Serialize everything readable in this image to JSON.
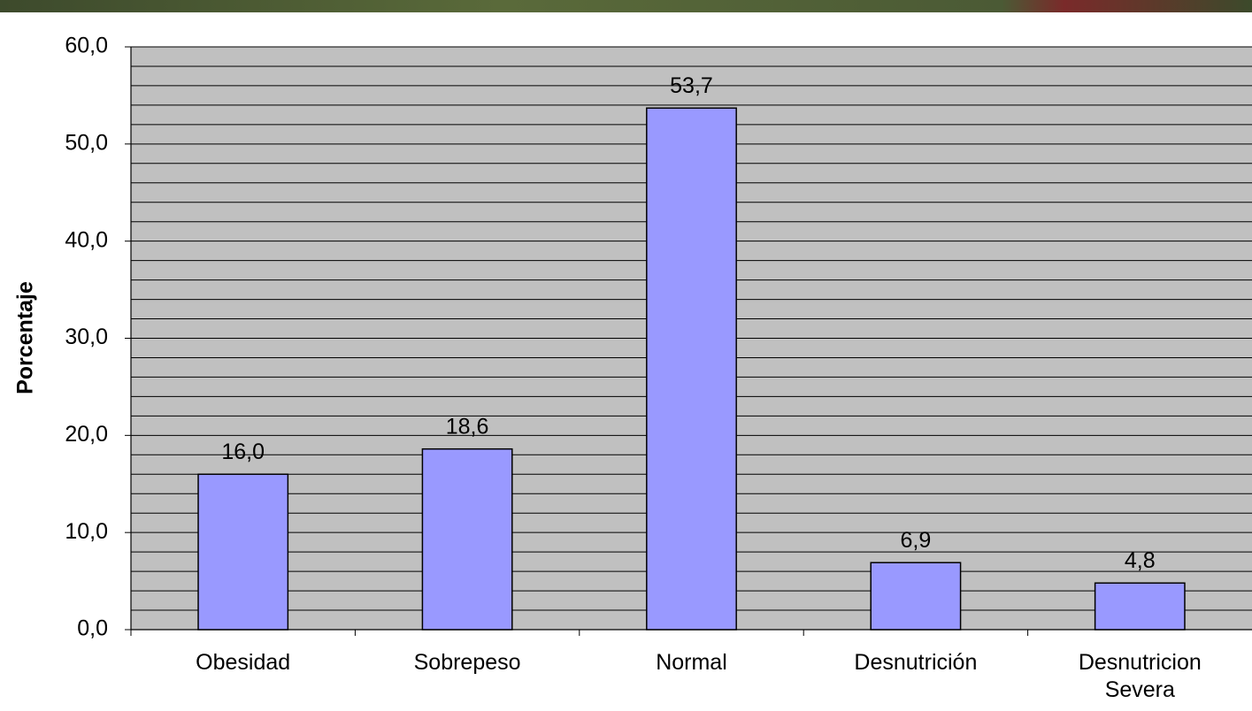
{
  "chart_data": {
    "type": "bar",
    "y_label": "Porcentaje",
    "categories": [
      "Obesidad",
      "Sobrepeso",
      "Normal",
      "Desnutrición",
      "Desnutricion Severa"
    ],
    "values": [
      16.0,
      18.6,
      53.7,
      6.9,
      4.8
    ],
    "value_labels": [
      "16,0",
      "18,6",
      "53,7",
      "6,9",
      "4,8"
    ],
    "color": "#9999ff",
    "plot_background": "#c0c0c0",
    "ylim": [
      0,
      60
    ],
    "yticks": [
      {
        "value": 0,
        "label": "0,0"
      },
      {
        "value": 10,
        "label": "10,0"
      },
      {
        "value": 20,
        "label": "20,0"
      },
      {
        "value": 30,
        "label": "30,0"
      },
      {
        "value": 40,
        "label": "40,0"
      },
      {
        "value": 50,
        "label": "50,0"
      },
      {
        "value": 60,
        "label": "60,0"
      }
    ],
    "minor_yticks": [
      2,
      4,
      6,
      8,
      12,
      14,
      16,
      18,
      22,
      24,
      26,
      28,
      32,
      34,
      36,
      38,
      42,
      44,
      46,
      48,
      52,
      54,
      56,
      58
    ],
    "grid": true
  }
}
